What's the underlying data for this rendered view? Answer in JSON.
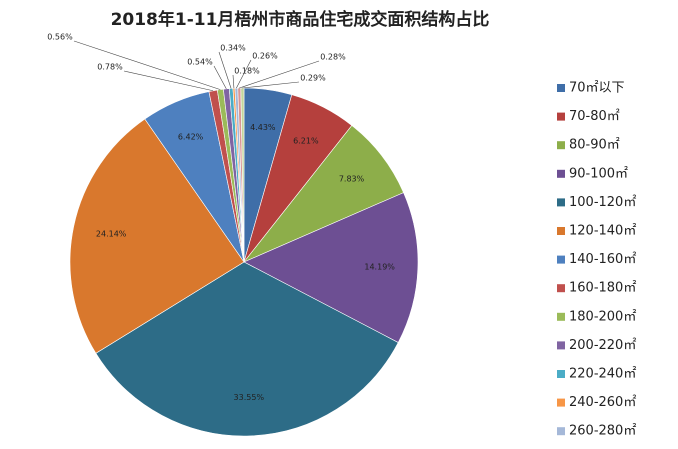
{
  "chart_data": {
    "type": "pie",
    "title": "2018年1-11月梧州市商品住宅成交面积结构占比",
    "categories": [
      "70㎡以下",
      "70-80㎡",
      "80-90㎡",
      "90-100㎡",
      "100-120㎡",
      "120-140㎡",
      "140-160㎡",
      "160-180㎡",
      "180-200㎡",
      "200-220㎡",
      "220-240㎡",
      "240-260㎡",
      "260-280㎡",
      null,
      null
    ],
    "values": [
      4.43,
      6.21,
      7.83,
      14.19,
      33.55,
      24.14,
      6.42,
      0.78,
      0.56,
      0.54,
      0.34,
      0.18,
      0.26,
      0.28,
      0.29
    ],
    "value_labels": [
      "4.43%",
      "6.21%",
      "7.83%",
      "14.19%",
      "33.55%",
      "24.14%",
      "6.42%",
      "0.78%",
      "0.56%",
      "0.54%",
      "0.34%",
      "0.18%",
      "0.26%",
      "0.28%",
      "0.29%"
    ],
    "colors": [
      "#3F6EA8",
      "#B5403D",
      "#8DAE4A",
      "#6D4F93",
      "#2D6C87",
      "#D9782D",
      "#4E80BF",
      "#C0504D",
      "#9BBB59",
      "#8064A2",
      "#4BACC6",
      "#F79646",
      "#A5B8D8",
      "#D99694",
      "#C3D69B"
    ],
    "legend": "right"
  }
}
